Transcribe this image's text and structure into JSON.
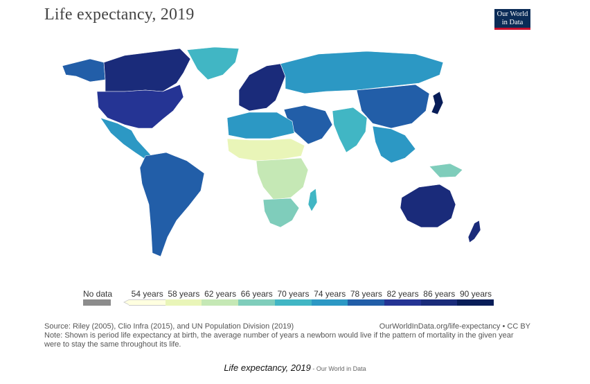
{
  "header": {
    "title": "Life expectancy, 2019"
  },
  "logo": {
    "line1": "Our World",
    "line2": "in Data"
  },
  "legend": {
    "nodata_label": "No data",
    "nodata_color": "#8c8c8c",
    "ticks": [
      "54 years",
      "58 years",
      "62 years",
      "66 years",
      "70 years",
      "74 years",
      "78 years",
      "82 years",
      "86 years",
      "90 years"
    ],
    "colors": [
      "#ffffe0",
      "#e9f5b8",
      "#c5e8b5",
      "#7fcdbb",
      "#41b6c4",
      "#2c98c4",
      "#225ea8",
      "#253494",
      "#1a2b7a",
      "#081d58"
    ]
  },
  "footer": {
    "source": "Source: Riley (2005), Clio Infra (2015), and UN Population Division (2019)",
    "credit": "OurWorldInData.org/life-expectancy • CC BY",
    "note": "Note: Shown is period life expectancy at birth, the average number of years a newborn would live if the pattern of mortality in the given year were to stay the same throughout its life."
  },
  "caption": {
    "main": "Life expectancy, 2019",
    "sub": " - Our World in Data"
  },
  "map": {
    "regions": [
      {
        "name": "north-america-region",
        "color": "#253494"
      },
      {
        "name": "canada-region",
        "color": "#1a2b7a"
      },
      {
        "name": "alaska-region",
        "color": "#225ea8"
      },
      {
        "name": "greenland-region",
        "color": "#41b6c4"
      },
      {
        "name": "central-america-region",
        "color": "#2c98c4"
      },
      {
        "name": "south-america-region",
        "color": "#225ea8"
      },
      {
        "name": "europe-region",
        "color": "#1a2b7a"
      },
      {
        "name": "russia-region",
        "color": "#2c98c4"
      },
      {
        "name": "middle-east-region",
        "color": "#225ea8"
      },
      {
        "name": "north-africa-region",
        "color": "#2c98c4"
      },
      {
        "name": "sahel-region",
        "color": "#e9f5b8"
      },
      {
        "name": "central-africa-region",
        "color": "#c5e8b5"
      },
      {
        "name": "southern-africa-region",
        "color": "#7fcdbb"
      },
      {
        "name": "south-asia-region",
        "color": "#41b6c4"
      },
      {
        "name": "china-region",
        "color": "#225ea8"
      },
      {
        "name": "japan-region",
        "color": "#081d58"
      },
      {
        "name": "southeast-asia-region",
        "color": "#2c98c4"
      },
      {
        "name": "australia-region",
        "color": "#1a2b7a"
      },
      {
        "name": "new-zealand-region",
        "color": "#1a2b7a"
      },
      {
        "name": "madagascar-region",
        "color": "#41b6c4"
      },
      {
        "name": "new-guinea-region",
        "color": "#7fcdbb"
      }
    ]
  }
}
